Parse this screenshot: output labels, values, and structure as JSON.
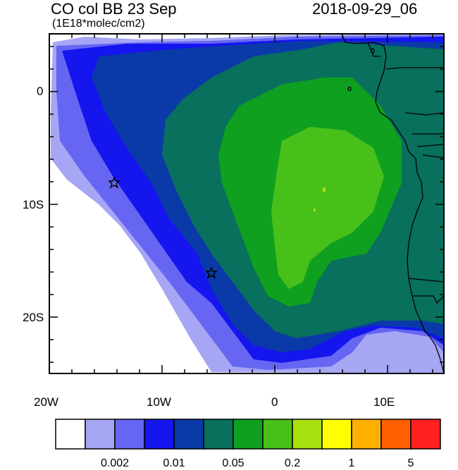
{
  "title_left": "CO col BB 23 Sep",
  "title_right": "2018-09-29_06",
  "units": "(1E18*molec/cm2)",
  "axes": {
    "y_labels": [
      "0",
      "10S",
      "20S"
    ],
    "x_labels": [
      "20W",
      "10W",
      "0",
      "10E"
    ]
  },
  "colorbar": {
    "colors": [
      "#ffffff",
      "#a6a6f5",
      "#6666f2",
      "#1515ee",
      "#0a3aa8",
      "#08705c",
      "#10a020",
      "#48c01a",
      "#a8e010",
      "#ffff00",
      "#ffb000",
      "#ff6000",
      "#ff2020"
    ],
    "labels": [
      "0.002",
      "0.01",
      "0.05",
      "0.2",
      "1",
      "5"
    ]
  },
  "markers": [
    {
      "name": "star-marker-1",
      "lon": -14.3,
      "lat": -8.0
    },
    {
      "name": "star-marker-2",
      "lon": -5.7,
      "lat": -16.0
    }
  ]
}
